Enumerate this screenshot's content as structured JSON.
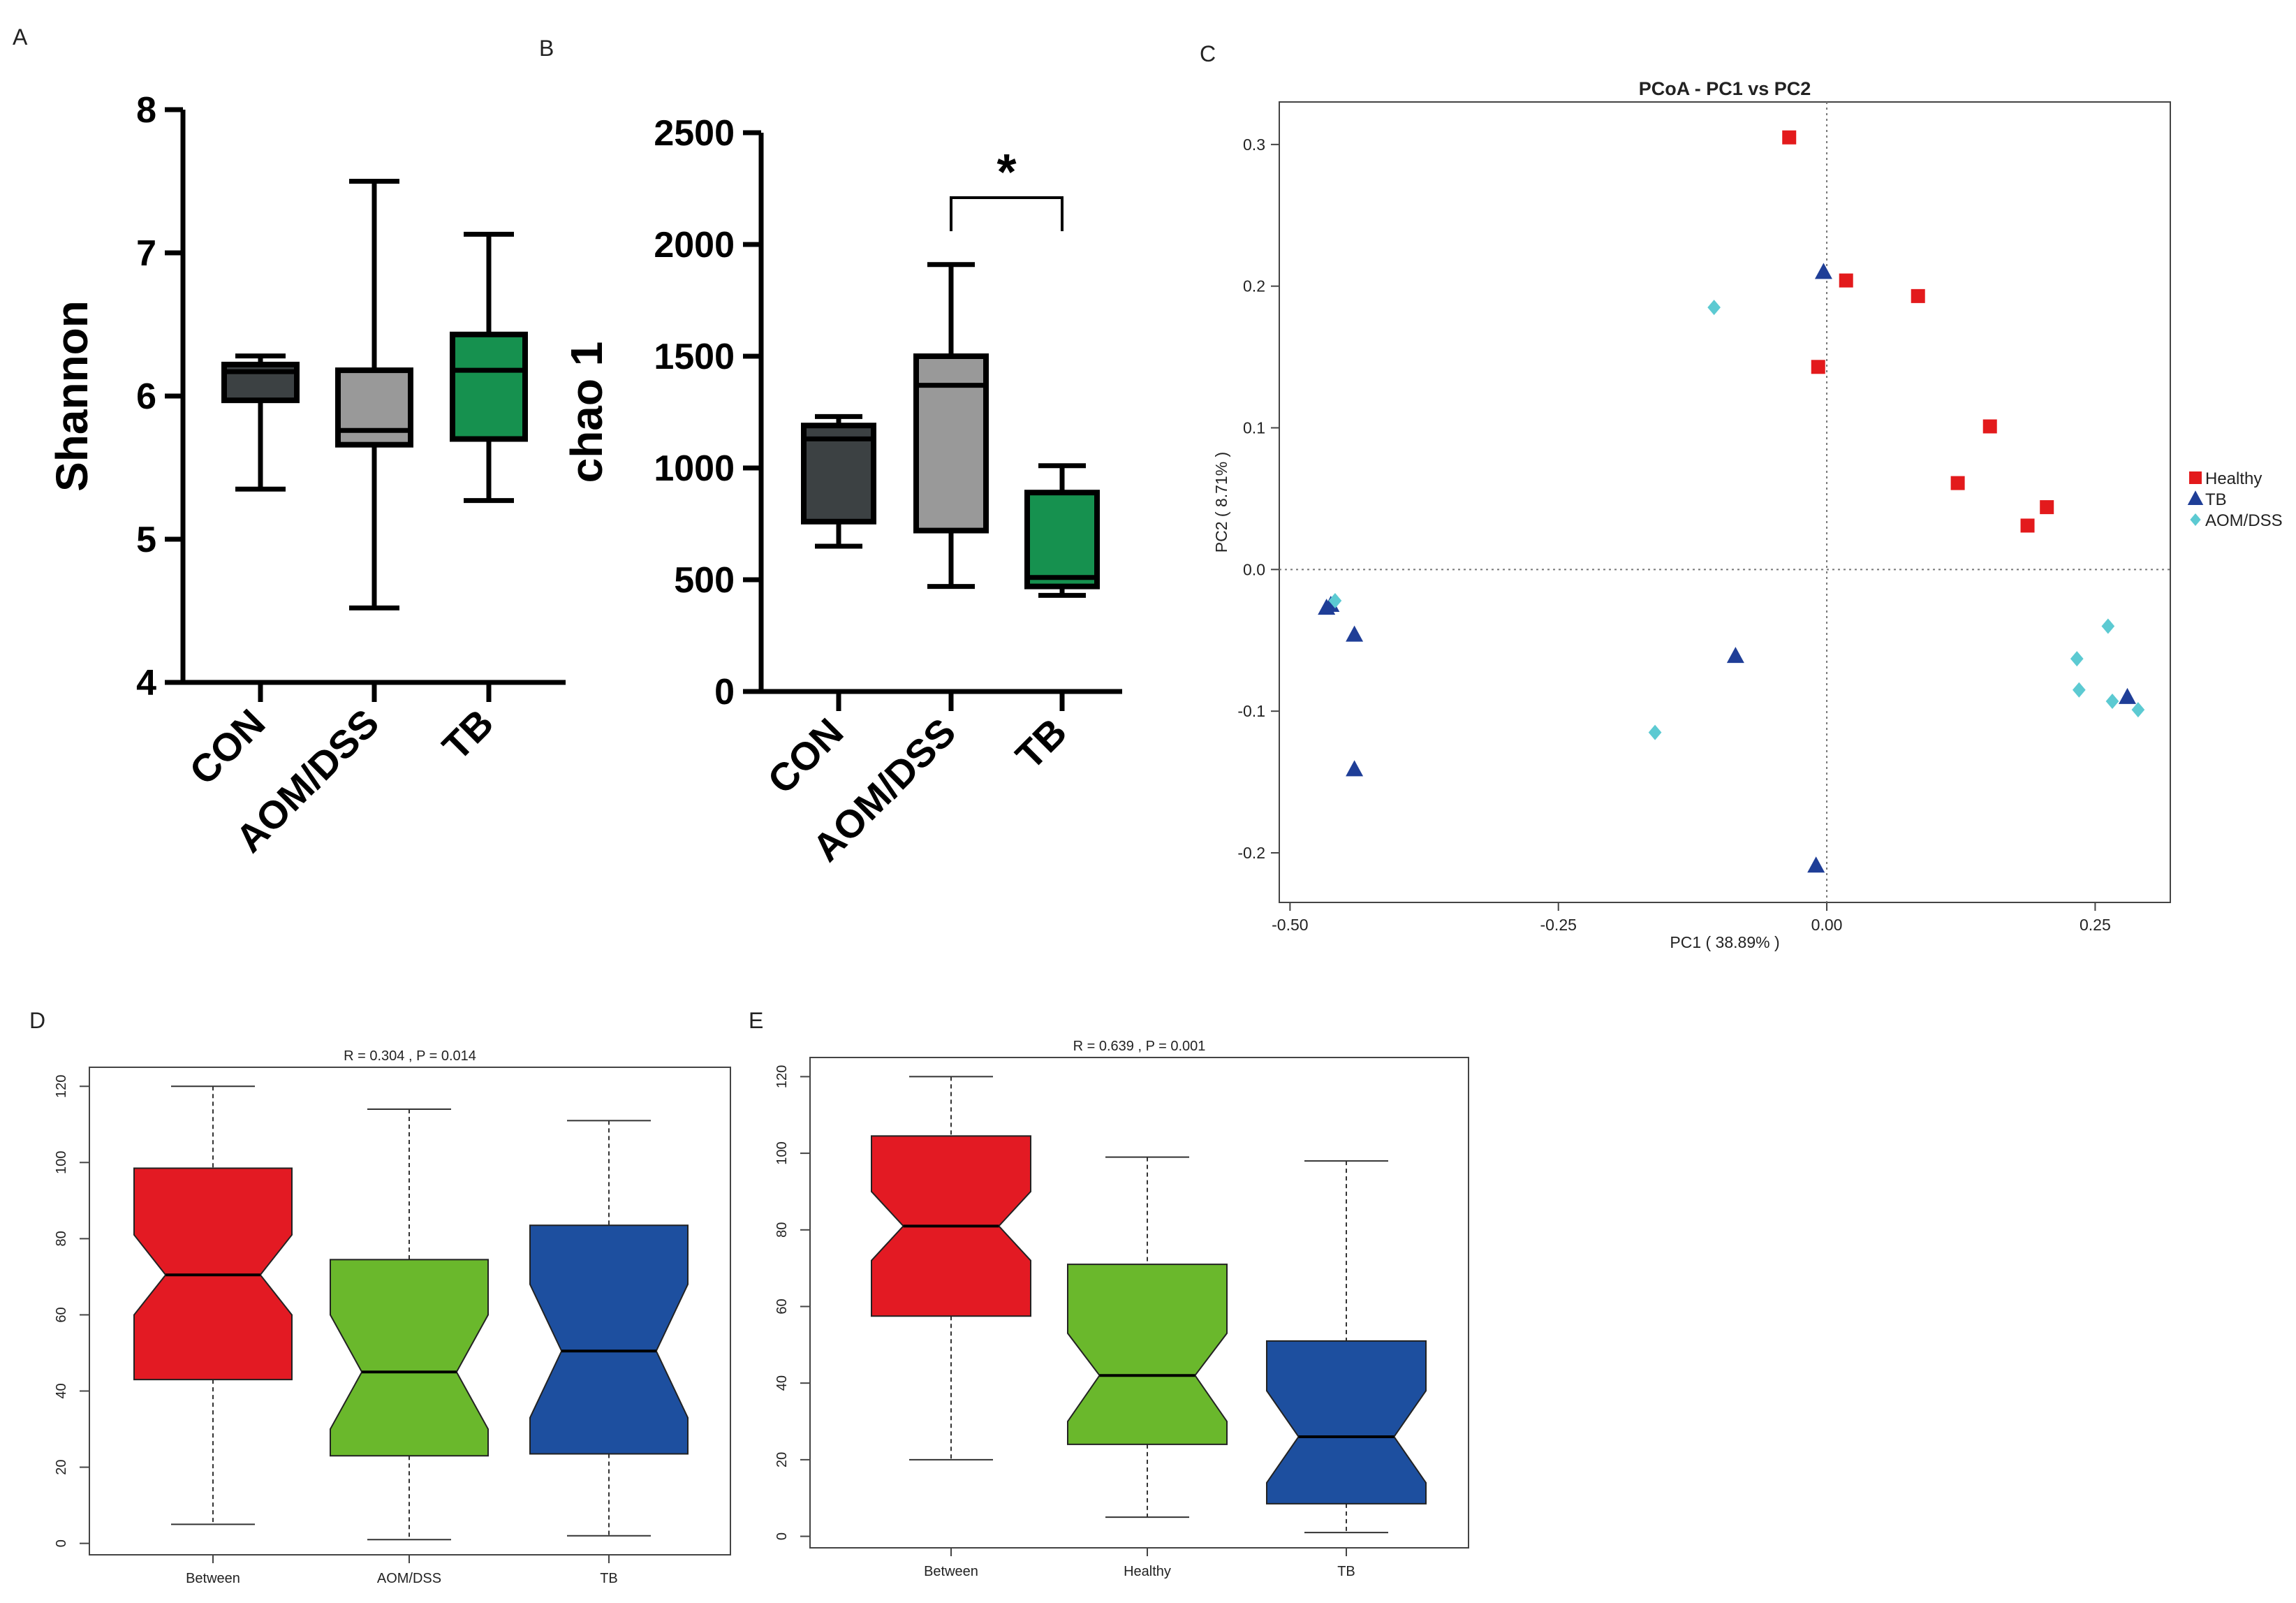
{
  "chart_data": [
    {
      "panel": "A",
      "type": "box",
      "ylabel": "Shannon",
      "ylim": [
        4,
        8
      ],
      "yticks": [
        4,
        5,
        6,
        7,
        8
      ],
      "categories": [
        "CON",
        "AOM/DSS",
        "TB"
      ],
      "boxes": [
        {
          "name": "CON",
          "min": 5.35,
          "q1": 5.97,
          "median": 6.17,
          "q3": 6.22,
          "max": 6.28,
          "color": "#3c4143"
        },
        {
          "name": "AOM/DSS",
          "min": 4.52,
          "q1": 5.66,
          "median": 5.76,
          "q3": 6.18,
          "max": 7.5,
          "color": "#999999"
        },
        {
          "name": "TB",
          "min": 5.27,
          "q1": 5.7,
          "median": 6.18,
          "q3": 6.43,
          "max": 7.13,
          "color": "#16914f"
        }
      ]
    },
    {
      "panel": "B",
      "type": "box",
      "ylabel": "chao 1",
      "ylim": [
        0,
        2500
      ],
      "yticks": [
        0,
        500,
        1000,
        1500,
        2000,
        2500
      ],
      "categories": [
        "CON",
        "AOM/DSS",
        "TB"
      ],
      "boxes": [
        {
          "name": "CON",
          "min": 650,
          "q1": 760,
          "median": 1130,
          "q3": 1190,
          "max": 1230,
          "color": "#3c4143"
        },
        {
          "name": "AOM/DSS",
          "min": 470,
          "q1": 720,
          "median": 1370,
          "q3": 1500,
          "max": 1910,
          "color": "#999999"
        },
        {
          "name": "TB",
          "min": 430,
          "q1": 470,
          "median": 510,
          "q3": 890,
          "max": 1010,
          "color": "#16914f"
        }
      ],
      "annotation": {
        "text": "*",
        "between": [
          "AOM/DSS",
          "TB"
        ]
      }
    },
    {
      "panel": "C",
      "type": "scatter",
      "title": "PCoA - PC1 vs PC2",
      "xlabel": "PC1 ( 38.89% )",
      "ylabel": "PC2 ( 8.71% )",
      "xlim": [
        -0.51,
        0.32
      ],
      "ylim": [
        -0.235,
        0.33
      ],
      "xticks": [
        -0.5,
        -0.25,
        0.0,
        0.25
      ],
      "xticklabels": [
        "-0.50",
        "-0.25",
        "0.00",
        "0.25"
      ],
      "yticks": [
        -0.2,
        -0.1,
        0.0,
        0.1,
        0.2,
        0.3
      ],
      "yticklabels": [
        "-0.2",
        "-0.1",
        "0.0",
        "0.1",
        "0.2",
        "0.3"
      ],
      "legend_position": "right",
      "series": [
        {
          "name": "Healthy",
          "marker": "square",
          "color": "#e31a1c",
          "x": [
            -0.035,
            0.018,
            0.085,
            -0.008,
            0.152,
            0.122,
            0.205,
            0.187
          ],
          "y": [
            0.305,
            0.204,
            0.193,
            0.143,
            0.101,
            0.061,
            0.044,
            0.031
          ]
        },
        {
          "name": "TB",
          "marker": "triangle",
          "color": "#1f3e97",
          "x": [
            -0.003,
            -0.466,
            -0.462,
            -0.44,
            -0.085,
            -0.44,
            -0.01,
            0.28
          ],
          "y": [
            0.21,
            -0.027,
            -0.025,
            -0.046,
            -0.061,
            -0.141,
            -0.209,
            -0.09
          ]
        },
        {
          "name": "AOM/DSS",
          "marker": "diamond",
          "color": "#5ccad2",
          "x": [
            -0.105,
            -0.458,
            -0.16,
            0.233,
            0.235,
            0.262,
            0.266,
            0.29
          ],
          "y": [
            0.185,
            -0.022,
            -0.115,
            -0.063,
            -0.085,
            -0.04,
            -0.093,
            -0.099
          ]
        }
      ]
    },
    {
      "panel": "D",
      "type": "box",
      "title": "R = 0.304 ,  P = 0.014",
      "ylim": [
        -3,
        125
      ],
      "yticks": [
        0,
        20,
        40,
        60,
        80,
        100,
        120
      ],
      "categories": [
        "Between",
        "AOM/DSS",
        "TB"
      ],
      "notched": true,
      "boxes": [
        {
          "name": "Between",
          "min": 5,
          "q1": 43,
          "median": 70.5,
          "q3": 98.5,
          "max": 120,
          "notch_lo": 60,
          "notch_hi": 81,
          "color": "#e31a23"
        },
        {
          "name": "AOM/DSS",
          "min": 1,
          "q1": 23,
          "median": 45,
          "q3": 74.5,
          "max": 114,
          "notch_lo": 30,
          "notch_hi": 60,
          "color": "#6ab82c"
        },
        {
          "name": "TB",
          "min": 2,
          "q1": 23.5,
          "median": 50.5,
          "q3": 83.5,
          "max": 111,
          "notch_lo": 33,
          "notch_hi": 68,
          "color": "#1d4f9f"
        }
      ]
    },
    {
      "panel": "E",
      "type": "box",
      "title": "R = 0.639 ,  P = 0.001",
      "ylim": [
        -3,
        125
      ],
      "yticks": [
        0,
        20,
        40,
        60,
        80,
        100,
        120
      ],
      "categories": [
        "Between",
        "Healthy",
        "TB"
      ],
      "notched": true,
      "boxes": [
        {
          "name": "Between",
          "min": 20,
          "q1": 57.5,
          "median": 81,
          "q3": 104.5,
          "max": 120,
          "notch_lo": 72,
          "notch_hi": 90,
          "color": "#e31a23"
        },
        {
          "name": "Healthy",
          "min": 5,
          "q1": 24,
          "median": 42,
          "q3": 71,
          "max": 99,
          "notch_lo": 30,
          "notch_hi": 53,
          "color": "#6ab82c"
        },
        {
          "name": "TB",
          "min": 1,
          "q1": 8.5,
          "median": 26,
          "q3": 51,
          "max": 98,
          "notch_lo": 14,
          "notch_hi": 38,
          "color": "#1d4f9f"
        }
      ]
    }
  ],
  "panel_labels": {
    "a": "A",
    "b": "B",
    "c": "C",
    "d": "D",
    "e": "E"
  }
}
